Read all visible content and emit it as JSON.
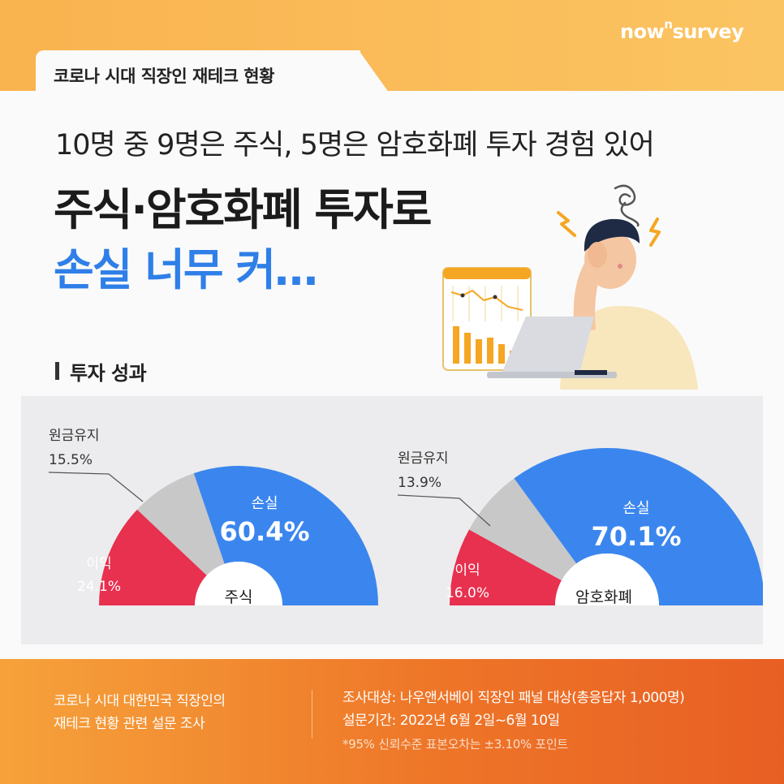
{
  "brand": {
    "logo_main": "now",
    "logo_sup": "n",
    "logo_tail": "survey"
  },
  "header": {
    "tab_title": "코로나 시대 직장인 재테크 현황"
  },
  "headline": {
    "subtitle": "10명 중 9명은 주식, 5명은 암호화폐 투자 경험 있어",
    "line1": "주식·암호화폐 투자로",
    "line2": "손실 너무 커…"
  },
  "section": {
    "label": "투자 성과"
  },
  "colors": {
    "loss": "#3b86ee",
    "maintain": "#c8c8c8",
    "profit": "#e8304f",
    "accent": "#2f7fe8"
  },
  "chart_data": [
    {
      "type": "pie",
      "center_label": "주식",
      "slices": [
        {
          "name": "이익",
          "value": 24.1,
          "value_label": "24.1%",
          "color": "#e8304f"
        },
        {
          "name": "원금유지",
          "value": 15.5,
          "value_label": "15.5%",
          "color": "#c8c8c8"
        },
        {
          "name": "손실",
          "value": 60.4,
          "value_label": "60.4%",
          "color": "#3b86ee"
        }
      ]
    },
    {
      "type": "pie",
      "center_label": "암호화폐",
      "slices": [
        {
          "name": "이익",
          "value": 16.0,
          "value_label": "16.0%",
          "color": "#e8304f"
        },
        {
          "name": "원금유지",
          "value": 13.9,
          "value_label": "13.9%",
          "color": "#c8c8c8"
        },
        {
          "name": "손실",
          "value": 70.1,
          "value_label": "70.1%",
          "color": "#3b86ee"
        }
      ]
    }
  ],
  "footer": {
    "left_line1": "코로나 시대 대한민국 직장인의",
    "left_line2": "재테크 현황 관련 설문 조사",
    "right_line1": "조사대상: 나우앤서베이 직장인 패널 대상(총응답자 1,000명)",
    "right_line2": "설문기간: 2022년 6월 2일~6월 10일",
    "note": "*95% 신뢰수준 표본오차는 ±3.10% 포인트"
  }
}
